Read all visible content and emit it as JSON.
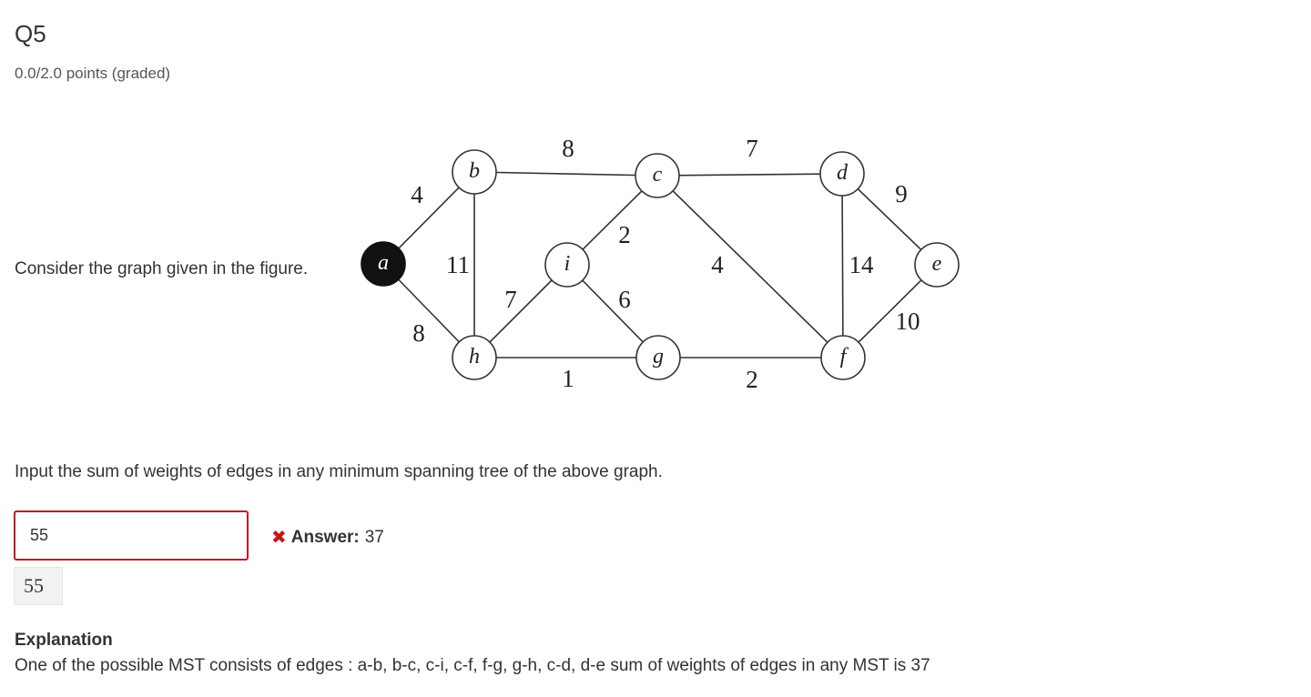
{
  "question": {
    "title": "Q5",
    "points": "0.0/2.0 points (graded)",
    "prompt": "Consider the graph given in the figure.",
    "instruction": "Input the sum of weights of edges in any minimum spanning tree of the above graph."
  },
  "graph": {
    "nodes": [
      {
        "id": "a",
        "label": "a",
        "start": true
      },
      {
        "id": "b",
        "label": "b"
      },
      {
        "id": "c",
        "label": "c"
      },
      {
        "id": "d",
        "label": "d"
      },
      {
        "id": "e",
        "label": "e"
      },
      {
        "id": "f",
        "label": "f"
      },
      {
        "id": "g",
        "label": "g"
      },
      {
        "id": "h",
        "label": "h"
      },
      {
        "id": "i",
        "label": "i"
      }
    ],
    "edges": [
      {
        "from": "a",
        "to": "b",
        "weight": "4"
      },
      {
        "from": "a",
        "to": "h",
        "weight": "8"
      },
      {
        "from": "b",
        "to": "c",
        "weight": "8"
      },
      {
        "from": "b",
        "to": "h",
        "weight": "11"
      },
      {
        "from": "c",
        "to": "d",
        "weight": "7"
      },
      {
        "from": "c",
        "to": "i",
        "weight": "2"
      },
      {
        "from": "c",
        "to": "f",
        "weight": "4"
      },
      {
        "from": "d",
        "to": "e",
        "weight": "9"
      },
      {
        "from": "d",
        "to": "f",
        "weight": "14"
      },
      {
        "from": "e",
        "to": "f",
        "weight": "10"
      },
      {
        "from": "h",
        "to": "i",
        "weight": "7"
      },
      {
        "from": "i",
        "to": "g",
        "weight": "6"
      },
      {
        "from": "h",
        "to": "g",
        "weight": "1"
      },
      {
        "from": "g",
        "to": "f",
        "weight": "2"
      }
    ]
  },
  "answer": {
    "input_value": "55",
    "feedback_label": "Answer:",
    "correct_value": "37",
    "submitted_display": "55",
    "incorrect_color": "#c4161c"
  },
  "explanation": {
    "title": "Explanation",
    "text": "One of the possible MST consists of edges : a-b, b-c, c-i, c-f, f-g, g-h, c-d, d-e sum of weights of edges in any MST is 37"
  }
}
